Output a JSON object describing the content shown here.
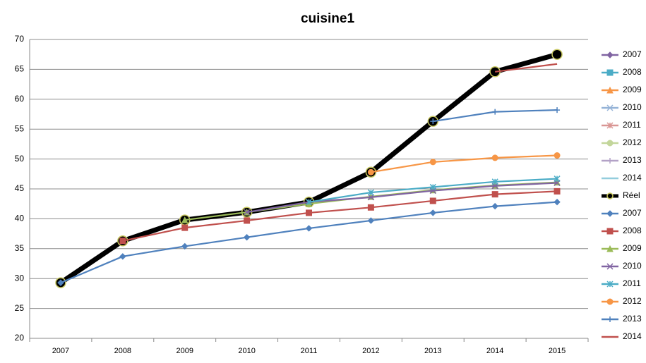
{
  "chart_data": {
    "type": "line",
    "title": "cuisine1",
    "categories": [
      "2007",
      "2008",
      "2009",
      "2010",
      "2011",
      "2012",
      "2013",
      "2014",
      "2015"
    ],
    "ylim": [
      20,
      70
    ],
    "yticks": [
      20,
      25,
      30,
      35,
      40,
      45,
      50,
      55,
      60,
      65,
      70
    ],
    "grid": true,
    "legend": "right",
    "series": [
      {
        "name": "2007",
        "color": "#8064a2",
        "marker": "diamond",
        "values": [
          29.3,
          null,
          null,
          null,
          null,
          null,
          null,
          null,
          null
        ]
      },
      {
        "name": "2008",
        "color": "#4bacc6",
        "marker": "square",
        "values": [
          29.3,
          36.3,
          null,
          null,
          null,
          null,
          null,
          null,
          null
        ]
      },
      {
        "name": "2009",
        "color": "#f79646",
        "marker": "triangle",
        "values": [
          29.3,
          36.3,
          39.8,
          null,
          null,
          null,
          null,
          null,
          null
        ]
      },
      {
        "name": "2010",
        "color": "#95b3d7",
        "marker": "x",
        "values": [
          29.3,
          36.3,
          39.8,
          41.1,
          null,
          null,
          null,
          null,
          null
        ]
      },
      {
        "name": "2011",
        "color": "#d99694",
        "marker": "star",
        "values": [
          29.3,
          36.3,
          39.8,
          41.1,
          42.8,
          null,
          null,
          null,
          null
        ]
      },
      {
        "name": "2012",
        "color": "#c3d69b",
        "marker": "circle",
        "values": [
          29.3,
          36.3,
          39.8,
          41.1,
          42.8,
          47.8,
          null,
          null,
          null
        ]
      },
      {
        "name": "2013",
        "color": "#b3a2c7",
        "marker": "plus",
        "values": [
          29.3,
          36.3,
          39.8,
          41.1,
          42.8,
          47.8,
          56.3,
          null,
          null
        ]
      },
      {
        "name": "2014",
        "color": "#93cddd",
        "marker": "none",
        "values": [
          29.3,
          36.3,
          39.8,
          41.1,
          42.8,
          47.8,
          56.3,
          64.6,
          null
        ]
      },
      {
        "name": "Réel",
        "color": "#000000",
        "marker": "circle",
        "line_width": 7,
        "marker_edge": "#c8c860",
        "values": [
          29.3,
          36.3,
          39.8,
          41.1,
          42.8,
          47.8,
          56.3,
          64.6,
          67.5
        ]
      },
      {
        "name": "2007",
        "color": "#4f81bd",
        "marker": "diamond",
        "values": [
          29.3,
          33.7,
          35.4,
          36.9,
          38.4,
          39.7,
          41.0,
          42.1,
          42.8
        ]
      },
      {
        "name": "2008",
        "color": "#c0504d",
        "marker": "square",
        "values": [
          null,
          36.3,
          38.5,
          39.7,
          41.0,
          41.9,
          43.0,
          44.1,
          44.6
        ]
      },
      {
        "name": "2009",
        "color": "#9bbb59",
        "marker": "triangle",
        "values": [
          null,
          null,
          39.8,
          41.1,
          42.5,
          43.7,
          44.8,
          45.6,
          46.1
        ]
      },
      {
        "name": "2010",
        "color": "#8064a2",
        "marker": "x",
        "values": [
          null,
          null,
          null,
          41.1,
          42.8,
          43.6,
          44.7,
          45.5,
          46.0
        ]
      },
      {
        "name": "2011",
        "color": "#4bacc6",
        "marker": "star",
        "values": [
          null,
          null,
          null,
          null,
          42.8,
          44.4,
          45.3,
          46.2,
          46.7
        ]
      },
      {
        "name": "2012",
        "color": "#f79646",
        "marker": "circle",
        "values": [
          null,
          null,
          null,
          null,
          null,
          47.8,
          49.5,
          50.2,
          50.6
        ]
      },
      {
        "name": "2013",
        "color": "#4f81bd",
        "marker": "plus",
        "values": [
          null,
          null,
          null,
          null,
          null,
          null,
          56.3,
          57.9,
          58.2
        ]
      },
      {
        "name": "2014",
        "color": "#c0504d",
        "marker": "none",
        "values": [
          null,
          null,
          null,
          null,
          null,
          null,
          null,
          64.6,
          65.9
        ]
      }
    ]
  }
}
